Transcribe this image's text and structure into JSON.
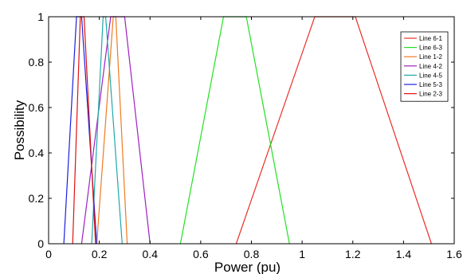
{
  "chart_data": {
    "type": "line",
    "title": "",
    "xlabel": "Power (pu)",
    "ylabel": "Possibility",
    "xlim": [
      0,
      1.6
    ],
    "ylim": [
      0,
      1
    ],
    "xticks": [
      0,
      0.2,
      0.4,
      0.6,
      0.8,
      1,
      1.2,
      1.4,
      1.6
    ],
    "xtick_labels": [
      "0",
      "0.2",
      "0.4",
      "0.6",
      "0.8",
      "1",
      "1.2",
      "1.4",
      "1.6"
    ],
    "yticks": [
      0,
      0.2,
      0.4,
      0.6,
      0.8,
      1
    ],
    "ytick_labels": [
      "0",
      "0.2",
      "0.4",
      "0.6",
      "0.8",
      "1"
    ],
    "grid": false,
    "legend_position": "top-right",
    "series": [
      {
        "name": "Line 6-1",
        "color": "#e8302a",
        "x": [
          0.74,
          1.05,
          1.21,
          1.51
        ],
        "y": [
          0,
          1,
          1,
          0
        ]
      },
      {
        "name": "Line 6-3",
        "color": "#22e022",
        "x": [
          0.52,
          0.69,
          0.78,
          0.95
        ],
        "y": [
          0,
          1,
          1,
          0
        ]
      },
      {
        "name": "Line 1-2",
        "color": "#f07a20",
        "x": [
          0.19,
          0.255,
          0.265,
          0.31
        ],
        "y": [
          0,
          1,
          1,
          0
        ]
      },
      {
        "name": "Line 4-2",
        "color": "#a020c0",
        "x": [
          0.13,
          0.245,
          0.3,
          0.4
        ],
        "y": [
          0,
          1,
          1,
          0
        ]
      },
      {
        "name": "Line 4-5",
        "color": "#20a8a8",
        "x": [
          0.17,
          0.215,
          0.225,
          0.29
        ],
        "y": [
          0,
          1,
          1,
          0
        ]
      },
      {
        "name": "Line 5-3",
        "color": "#1a20e0",
        "x": [
          0.06,
          0.11,
          0.13,
          0.19
        ],
        "y": [
          0,
          1,
          1,
          0
        ]
      },
      {
        "name": "Line 2-3",
        "color": "#e01010",
        "x": [
          0.095,
          0.125,
          0.14,
          0.185
        ],
        "y": [
          0,
          1,
          1,
          0
        ]
      }
    ]
  }
}
